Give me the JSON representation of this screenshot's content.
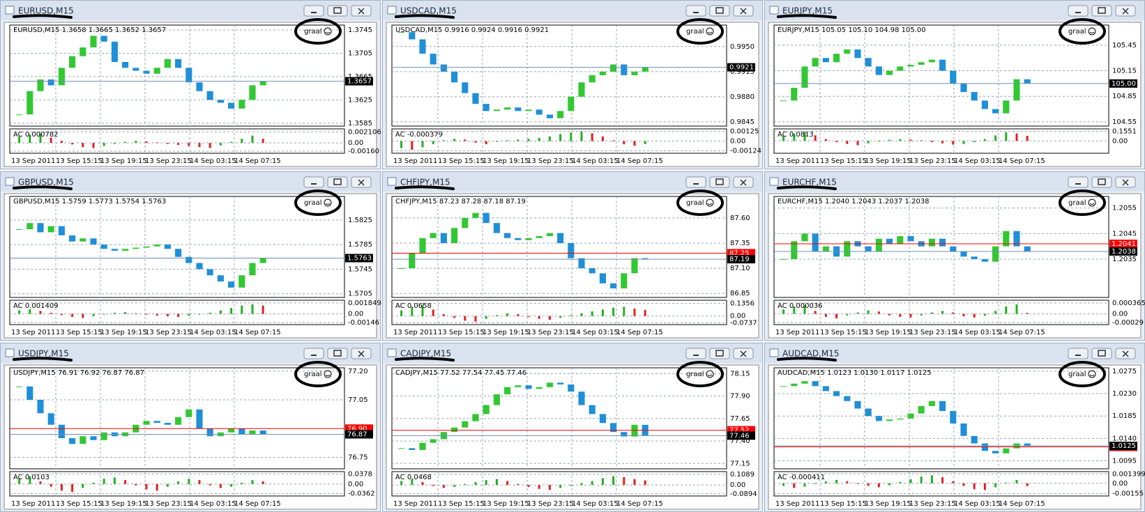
{
  "time_labels": [
    "13 Sep 2011",
    "13 Sep 15:15",
    "13 Sep 19:15",
    "13 Sep 23:15",
    "14 Sep 03:15",
    "14 Sep 07:15"
  ],
  "badge": "graal",
  "windows": [
    {
      "title": "EURUSD,M15",
      "header": "EURUSD,M15  1.3658 1.3665 1.3652 1.3657",
      "ylim": [
        1.358,
        1.3751
      ],
      "yticks": [
        1.3745,
        1.3705,
        1.3665,
        1.3625,
        1.3585
      ],
      "last": 1.3657,
      "ac_label": "AC 0.000782",
      "ac_ylim": [
        -0.002,
        0.0027
      ],
      "ac_ticks": [
        0.002106,
        {
          "value": 0,
          "label": "0.00"
        },
        {
          "value": -0.0016,
          "label": "-0.00160"
        }
      ],
      "closes": [
        1.36,
        1.364,
        1.366,
        1.365,
        1.368,
        1.37,
        1.3715,
        1.3735,
        1.3725,
        1.369,
        1.368,
        1.3675,
        1.367,
        1.368,
        1.3695,
        1.368,
        1.3655,
        1.364,
        1.3625,
        1.362,
        1.361,
        1.3625,
        1.365,
        1.3657
      ],
      "ac": [
        0.0012,
        0.0016,
        0.0018,
        0.001,
        0.0004,
        -0.0003,
        -0.0008,
        -0.001,
        -0.0006,
        -0.0002,
        0.0002,
        0.0004,
        0.0003,
        0.0001,
        -0.0002,
        -0.0004,
        -0.0006,
        -0.0008,
        -0.001,
        -0.0005,
        0.0002,
        0.0008,
        0.0014,
        0.000782
      ]
    },
    {
      "title": "USDCAD,M15",
      "header": "USDCAD,M15  0.9916 0.9924 0.9916 0.9921",
      "ylim": [
        0.9839,
        0.9978
      ],
      "yticks": [
        {
          "value": 0.995,
          "label": "0.9950"
        },
        0.9915,
        {
          "value": 0.988,
          "label": "0.9880"
        },
        0.9845
      ],
      "last": 0.9921,
      "ac_label": "AC -0.000379",
      "ac_ylim": [
        -0.00155,
        0.00156
      ],
      "ac_ticks": [
        0.00125,
        {
          "value": 0,
          "label": "0.00"
        },
        -0.00124
      ],
      "closes": [
        0.997,
        0.996,
        0.994,
        0.9925,
        0.9915,
        0.99,
        0.9885,
        0.987,
        0.986,
        0.9862,
        0.9865,
        0.986,
        0.9862,
        0.9855,
        0.985,
        0.986,
        0.988,
        0.99,
        0.991,
        0.9915,
        0.9925,
        0.991,
        0.9915,
        0.9921
      ],
      "ac": [
        -0.0009,
        -0.0011,
        -0.0008,
        -0.0004,
        0.0001,
        0.0003,
        0.0002,
        -0.0002,
        -0.0004,
        -0.0001,
        0.0001,
        0.0002,
        0.0003,
        0.0004,
        0.0006,
        0.0009,
        0.0011,
        0.0012,
        0.001,
        0.0006,
        0.0001,
        -0.0004,
        -0.0006,
        -0.000379
      ]
    },
    {
      "title": "EURJPY,M15",
      "header": "EURJPY,M15  105.05 105.10 104.98 105.00",
      "ylim": [
        104.5,
        105.67
      ],
      "yticks": [
        105.45,
        105.15,
        104.85,
        104.55
      ],
      "last": {
        "value": 105,
        "label": "105.00"
      },
      "ac_label": "AC 0.0813",
      "ac_ylim": [
        -0.2,
        0.195
      ],
      "ac_ticks": [
        0.1551,
        {
          "value": 0,
          "label": "0.00"
        }
      ],
      "closes": [
        104.8,
        104.95,
        105.2,
        105.3,
        105.25,
        105.35,
        105.4,
        105.3,
        105.2,
        105.1,
        105.15,
        105.2,
        105.22,
        105.25,
        105.28,
        105.15,
        105,
        104.9,
        104.8,
        104.7,
        104.65,
        104.8,
        105.05,
        105
      ],
      "ac": [
        0.08,
        0.12,
        0.14,
        0.09,
        0.03,
        -0.02,
        -0.05,
        -0.07,
        -0.04,
        -0.01,
        0.02,
        0.03,
        0.02,
        0.01,
        -0.02,
        -0.04,
        -0.06,
        -0.05,
        -0.02,
        0.03,
        0.09,
        0.14,
        0.12,
        0.0813
      ]
    },
    {
      "title": "GBPUSD,M15",
      "header": "GBPUSD,M15  1.5759 1.5773 1.5754 1.5763",
      "ylim": [
        1.5699,
        1.5861
      ],
      "yticks": [
        1.5825,
        1.5785,
        1.5745,
        1.5705
      ],
      "last": 1.5763,
      "ac_label": "AC 0.001409",
      "ac_ylim": [
        -0.0018,
        0.0023
      ],
      "ac_ticks": [
        0.001849,
        {
          "value": 0,
          "label": "0.00"
        },
        -0.00146
      ],
      "closes": [
        1.581,
        1.582,
        1.5805,
        1.5815,
        1.58,
        1.579,
        1.5795,
        1.5785,
        1.5778,
        1.5775,
        1.5778,
        1.578,
        1.5782,
        1.5785,
        1.5778,
        1.5765,
        1.5755,
        1.5745,
        1.5735,
        1.5725,
        1.5715,
        1.5735,
        1.5755,
        1.5763
      ],
      "ac": [
        0.0006,
        0.0008,
        0.0005,
        0.0002,
        -0.0002,
        -0.0005,
        -0.0007,
        -0.0004,
        -0.0001,
        0.0002,
        0.0003,
        0.0001,
        -0.0001,
        -0.0003,
        -0.0004,
        -0.0005,
        -0.0003,
        -0.0001,
        0.0002,
        0.0006,
        0.001,
        0.0014,
        0.0016,
        0.001409
      ]
    },
    {
      "title": "CHFJPY,M15",
      "header": "CHFJPY,M15  87.23 87.28 87.18 87.19",
      "ylim": [
        86.81,
        87.8
      ],
      "yticks": [
        {
          "value": 87.6,
          "label": "87.60"
        },
        87.35,
        {
          "value": 87.1,
          "label": "87.10"
        },
        86.85
      ],
      "last": 87.19,
      "ask": 87.25,
      "ac_label": "AC 0.0658",
      "ac_ylim": [
        -0.092,
        0.17
      ],
      "ac_ticks": [
        0.1356,
        {
          "value": 0,
          "label": "0.00"
        },
        -0.0737
      ],
      "closes": [
        87.1,
        87.25,
        87.4,
        87.45,
        87.35,
        87.5,
        87.6,
        87.65,
        87.55,
        87.45,
        87.4,
        87.38,
        87.4,
        87.42,
        87.45,
        87.35,
        87.2,
        87.1,
        87.05,
        86.95,
        86.9,
        87.05,
        87.2,
        87.19
      ],
      "ac": [
        0.06,
        0.1,
        0.12,
        0.07,
        0.02,
        -0.02,
        -0.05,
        -0.06,
        -0.03,
        0.01,
        0.03,
        0.02,
        -0.01,
        -0.03,
        -0.04,
        -0.02,
        0.01,
        0.03,
        0.05,
        0.07,
        0.09,
        0.1,
        0.08,
        0.0658
      ]
    },
    {
      "title": "EURCHF,M15",
      "header": "EURCHF,M15  1.2040 1.2043 1.2037 1.2038",
      "ylim": [
        1.202,
        1.2059
      ],
      "yticks": [
        1.2055,
        1.2045,
        1.2035
      ],
      "last": 1.2038,
      "ask": 1.2041,
      "ac_label": "AC 0.000036",
      "ac_ylim": [
        -0.00036,
        0.00046
      ],
      "ac_ticks": [
        0.000365,
        {
          "value": 0,
          "label": "0.00"
        },
        -0.00029
      ],
      "closes": [
        1.2035,
        1.2042,
        1.2045,
        1.2038,
        1.204,
        1.2036,
        1.2042,
        1.204,
        1.2038,
        1.2043,
        1.2041,
        1.2044,
        1.2042,
        1.204,
        1.2043,
        1.204,
        1.2038,
        1.2036,
        1.2035,
        1.2034,
        1.204,
        1.2046,
        1.204,
        1.2038
      ],
      "ac": [
        0.00015,
        0.00025,
        0.0003,
        0.0001,
        -0.0001,
        -0.00015,
        -5e-05,
        5e-05,
        0.00012,
        8e-05,
        -5e-05,
        -0.0001,
        -0.00012,
        -5e-05,
        5e-05,
        0.0001,
        5e-05,
        -8e-05,
        -0.00012,
        -6e-05,
        0.0001,
        0.00025,
        0.00032,
        3.6e-05
      ]
    },
    {
      "title": "USDJPY,M15",
      "header": "USDJPY,M15  76.91 76.92 76.87 76.87",
      "ylim": [
        76.69,
        77.21
      ],
      "yticks": [
        {
          "value": 77.2,
          "label": "77.20"
        },
        77.05,
        76.75
      ],
      "last": 76.87,
      "ask": {
        "value": 76.9,
        "label": "76.90"
      },
      "ac_label": "AC 0.0103",
      "ac_ylim": [
        -0.045,
        0.047
      ],
      "ac_ticks": [
        0.0378,
        {
          "value": 0,
          "label": "0.00"
        },
        -0.0362
      ],
      "closes": [
        77.12,
        77.05,
        76.98,
        76.92,
        76.85,
        76.82,
        76.86,
        76.84,
        76.88,
        76.86,
        76.88,
        76.92,
        76.94,
        76.93,
        76.92,
        76.96,
        77,
        76.9,
        76.86,
        76.88,
        76.9,
        76.87,
        76.89,
        76.87
      ],
      "ac": [
        0.02,
        0.03,
        0.01,
        -0.01,
        -0.025,
        -0.03,
        -0.015,
        0.005,
        0.02,
        0.025,
        0.015,
        -0.005,
        -0.02,
        -0.025,
        -0.01,
        0.01,
        0.02,
        0.015,
        -0.005,
        -0.015,
        -0.01,
        0.005,
        0.015,
        0.0103
      ]
    },
    {
      "title": "CADJPY,M15",
      "header": "CADJPY,M15  77.52 77.54 77.45 77.46",
      "ylim": [
        77.09,
        78.2
      ],
      "yticks": [
        78.15,
        {
          "value": 77.9,
          "label": "77.90"
        },
        77.65,
        {
          "value": 77.4,
          "label": "77.40"
        },
        77.15
      ],
      "last": 77.46,
      "ask": 77.52,
      "ac_label": "AC 0.0468",
      "ac_ylim": [
        -0.112,
        0.136
      ],
      "ac_ticks": [
        0.1089,
        {
          "value": 0,
          "label": "0.00"
        },
        -0.0894
      ],
      "closes": [
        77.32,
        77.3,
        77.38,
        77.42,
        77.5,
        77.55,
        77.62,
        77.7,
        77.8,
        77.92,
        78,
        78.02,
        77.98,
        78,
        78.05,
        78.03,
        77.95,
        77.8,
        77.7,
        77.6,
        77.5,
        77.45,
        77.58,
        77.46
      ],
      "ac": [
        0.04,
        0.06,
        0.03,
        -0.01,
        -0.03,
        -0.02,
        0.01,
        0.03,
        0.05,
        0.06,
        0.04,
        0.01,
        -0.02,
        -0.04,
        -0.05,
        -0.03,
        -0.01,
        0.02,
        0.04,
        0.07,
        0.09,
        0.08,
        0.06,
        0.0468
      ]
    },
    {
      "title": "AUDCAD,M15",
      "header": "AUDCAD,M15  1.0123 1.0130 1.0117 1.0125",
      "ylim": [
        1.0079,
        1.0279
      ],
      "yticks": [
        1.0275,
        {
          "value": 1.023,
          "label": "1.0230"
        },
        1.0185,
        {
          "value": 1.014,
          "label": "1.0140"
        },
        1.0095
      ],
      "last": 1.0125,
      "ask": 1.0123,
      "ac_label": "AC -0.000411",
      "ac_ylim": [
        -0.0019,
        0.00175
      ],
      "ac_ticks": [
        0.001399,
        {
          "value": 0,
          "label": "0.00"
        },
        -0.00155
      ],
      "closes": [
        1.0245,
        1.025,
        1.0255,
        1.0245,
        1.0235,
        1.0225,
        1.0215,
        1.02,
        1.0185,
        1.0175,
        1.0178,
        1.018,
        1.019,
        1.0205,
        1.0215,
        1.0195,
        1.017,
        1.0145,
        1.013,
        1.0115,
        1.011,
        1.012,
        1.013,
        1.0125
      ],
      "ac": [
        -0.0004,
        -0.0007,
        -0.0005,
        -0.0001,
        0.0003,
        0.0005,
        0.0003,
        -0.0001,
        -0.0004,
        -0.0006,
        -0.0003,
        0.0002,
        0.0006,
        0.001,
        0.0012,
        0.0009,
        0.0003,
        -0.0004,
        -0.0009,
        -0.001,
        -0.0006,
        0.0001,
        0.0005,
        -0.000411
      ]
    }
  ]
}
